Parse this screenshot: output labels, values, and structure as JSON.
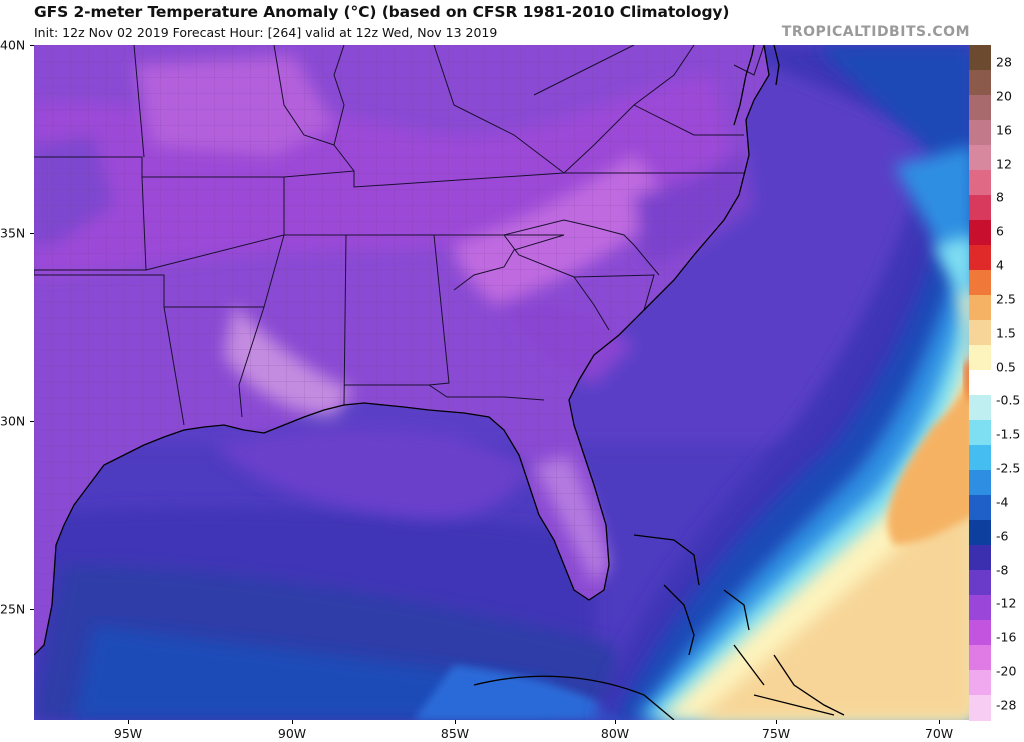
{
  "title": "GFS 2-meter Temperature Anomaly (°C) (based on CFSR 1981-2010 Climatology)",
  "subtitle": "Init: 12z Nov 02 2019   Forecast Hour: [264]   valid at 12z Wed, Nov 13 2019",
  "brand": "TROPICALTIDBITS.COM",
  "lat_labels": [
    "40N",
    "35N",
    "30N",
    "25N"
  ],
  "lon_labels": [
    "95W",
    "90W",
    "85W",
    "80W",
    "75W",
    "70W"
  ],
  "colorbar": {
    "labels": [
      "28",
      "20",
      "16",
      "12",
      "8",
      "6",
      "4",
      "2.5",
      "1.5",
      "0.5",
      "-0.5",
      "-1.5",
      "-2.5",
      "-4",
      "-6",
      "-8",
      "-12",
      "-16",
      "-20",
      "-28"
    ],
    "colors": [
      "#6b4a2f",
      "#8c5a4a",
      "#a86a6c",
      "#c27a8a",
      "#d7889e",
      "#e06a86",
      "#d83a5e",
      "#c8102e",
      "#e02a2a",
      "#f07838",
      "#f5b264",
      "#f7d598",
      "#fdf3bd",
      "#ffffff",
      "#bfeff0",
      "#7fdff2",
      "#46bdf0",
      "#2e8fe2",
      "#1e5fc8",
      "#0d3f9e",
      "#3b2fb0",
      "#6a3ac9",
      "#9a46d9",
      "#c254e0",
      "#e07ae4",
      "#f0a8ee",
      "#f8cdf4"
    ]
  }
}
